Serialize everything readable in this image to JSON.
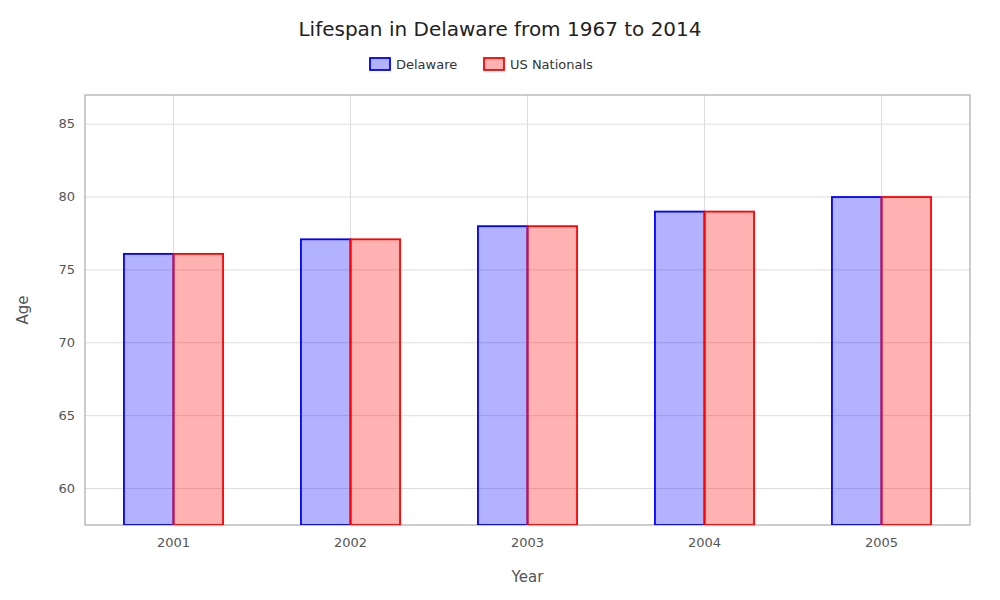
{
  "chart_data": {
    "type": "bar",
    "title": "Lifespan in Delaware from 1967 to 2014",
    "x_label": "Year",
    "y_label": "Age",
    "categories": [
      "2001",
      "2002",
      "2003",
      "2004",
      "2005"
    ],
    "series": [
      {
        "name": "Delaware",
        "color": "#0000ff",
        "values": [
          76.1,
          77.1,
          78.0,
          79.0,
          80.0
        ]
      },
      {
        "name": "US Nationals",
        "color": "#ff0000",
        "values": [
          76.1,
          77.1,
          78.0,
          79.0,
          80.0
        ]
      }
    ],
    "ylim": [
      57.5,
      87
    ],
    "yticks": [
      60,
      65,
      70,
      75,
      80,
      85
    ],
    "grid": true,
    "legend": "top"
  }
}
